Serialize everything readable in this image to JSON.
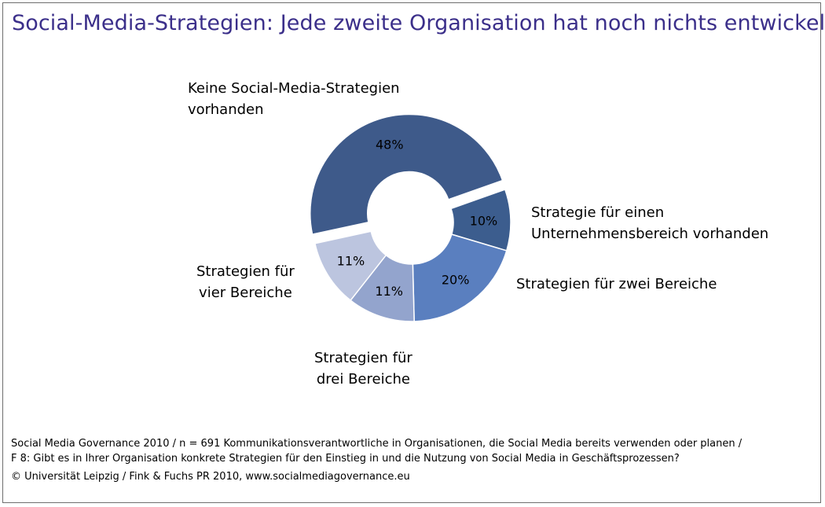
{
  "title": "Social-Media-Strategien: Jede zweite Organisation hat noch nichts entwickelt",
  "chart_data": {
    "type": "pie",
    "donut": true,
    "slices": [
      {
        "label_lines": [
          "Strategie für einen",
          "Unternehmensbereich vorhanden"
        ],
        "value": 10,
        "display": "10%",
        "color": "#3c5d8e"
      },
      {
        "label_lines": [
          "Strategien für zwei Bereiche"
        ],
        "value": 20,
        "display": "20%",
        "color": "#5a7fbf"
      },
      {
        "label_lines": [
          "Strategien für",
          "drei Bereiche"
        ],
        "value": 11,
        "display": "11%",
        "color": "#93a4cd"
      },
      {
        "label_lines": [
          "Strategien für",
          "vier Bereiche"
        ],
        "value": 11,
        "display": "11%",
        "color": "#bcc5df"
      },
      {
        "label_lines": [
          "Keine Social-Media-Strategien",
          "vorhanden"
        ],
        "value": 48,
        "display": "48%",
        "color": "#3e5a8a"
      }
    ]
  },
  "footer": {
    "line1": "Social Media Governance 2010 /  n = 691 Kommunikationsverantwortliche in Organisationen, die Social Media bereits verwenden oder planen /",
    "line2": "F 8: Gibt es in Ihrer Organisation konkrete Strategien für den Einstieg in und die Nutzung von Social Media in Geschäftsprozessen?",
    "line3": "© Universität Leipzig / Fink & Fuchs PR 2010, www.socialmediagovernance.eu"
  }
}
